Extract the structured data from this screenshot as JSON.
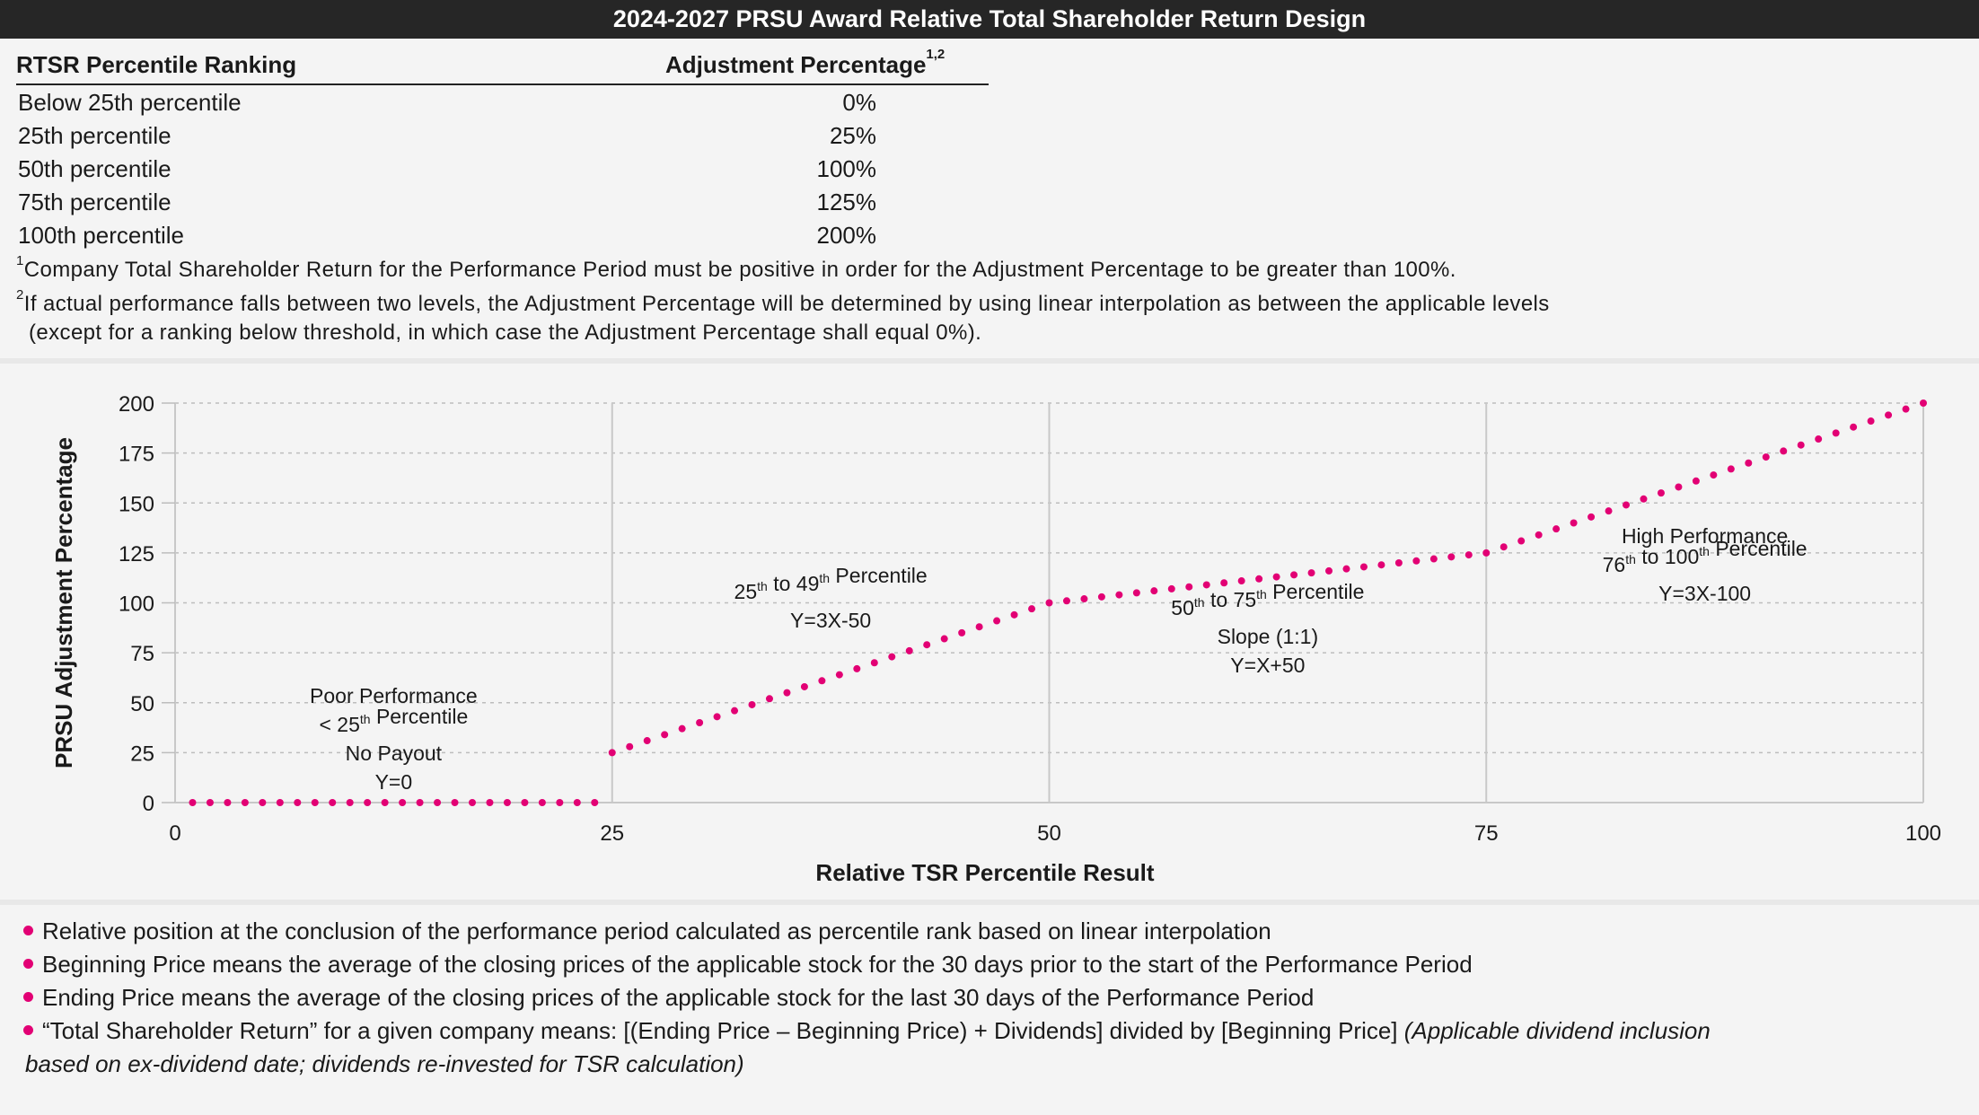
{
  "title": "2024-2027 PRSU Award Relative Total Shareholder Return Design",
  "table": {
    "header_ranking": "RTSR Percentile Ranking",
    "header_adjustment": "Adjustment Percentage",
    "header_adjustment_sup": "1,2",
    "rows": [
      {
        "ranking": "Below 25th percentile",
        "adjustment": "0%"
      },
      {
        "ranking": "25th percentile",
        "adjustment": "25%"
      },
      {
        "ranking": "50th percentile",
        "adjustment": "100%"
      },
      {
        "ranking": "75th percentile",
        "adjustment": "125%"
      },
      {
        "ranking": "100th percentile",
        "adjustment": "200%"
      }
    ]
  },
  "footnotes": {
    "fn1_mark": "1",
    "fn1": "Company Total Shareholder Return for the Performance Period must be positive in order for the Adjustment Percentage to be greater than 100%.",
    "fn2_mark": "2",
    "fn2_line1": "If actual performance falls between two levels, the Adjustment Percentage will be determined by using linear interpolation as between the applicable levels",
    "fn2_line2": "(except for a ranking below threshold, in which case the Adjustment Percentage shall equal 0%)."
  },
  "chart_data": {
    "type": "scatter",
    "xlabel": "Relative TSR Percentile Result",
    "ylabel": "PRSU Adjustment Percentage",
    "xlim": [
      0,
      100
    ],
    "ylim": [
      0,
      200
    ],
    "x_ticks": [
      0,
      25,
      50,
      75,
      100
    ],
    "y_ticks": [
      0,
      25,
      50,
      75,
      100,
      125,
      150,
      175,
      200
    ],
    "grid": "dotted horizontal lines, solid vertical lines at 25, 50, 75, 100",
    "marker_color": "#e20074",
    "series": [
      {
        "x": [
          1,
          2,
          3,
          4,
          5,
          6,
          7,
          8,
          9,
          10,
          11,
          12,
          13,
          14,
          15,
          16,
          17,
          18,
          19,
          20,
          21,
          22,
          23,
          24,
          25,
          26,
          27,
          28,
          29,
          30,
          31,
          32,
          33,
          34,
          35,
          36,
          37,
          38,
          39,
          40,
          41,
          42,
          43,
          44,
          45,
          46,
          47,
          48,
          49,
          50,
          51,
          52,
          53,
          54,
          55,
          56,
          57,
          58,
          59,
          60,
          61,
          62,
          63,
          64,
          65,
          66,
          67,
          68,
          69,
          70,
          71,
          72,
          73,
          74,
          75,
          76,
          77,
          78,
          79,
          80,
          81,
          82,
          83,
          84,
          85,
          86,
          87,
          88,
          89,
          90,
          91,
          92,
          93,
          94,
          95,
          96,
          97,
          98,
          99,
          100
        ],
        "y": [
          0,
          0,
          0,
          0,
          0,
          0,
          0,
          0,
          0,
          0,
          0,
          0,
          0,
          0,
          0,
          0,
          0,
          0,
          0,
          0,
          0,
          0,
          0,
          0,
          25,
          28,
          31,
          34,
          37,
          40,
          43,
          46,
          49,
          52,
          55,
          58,
          61,
          64,
          67,
          70,
          73,
          76,
          79,
          82,
          85,
          88,
          91,
          94,
          97,
          100,
          101,
          102,
          103,
          104,
          105,
          106,
          107,
          108,
          109,
          110,
          111,
          112,
          113,
          114,
          115,
          116,
          117,
          118,
          119,
          120,
          121,
          122,
          123,
          124,
          125,
          128,
          131,
          134,
          137,
          140,
          143,
          146,
          149,
          152,
          155,
          158,
          161,
          164,
          167,
          170,
          173,
          176,
          179,
          182,
          185,
          188,
          191,
          194,
          197,
          200
        ]
      }
    ],
    "annotations": [
      {
        "lines": [
          "Poor Performance",
          "< 25th Percentile",
          "No Payout",
          "Y=0"
        ],
        "x": 12.5,
        "y": 50
      },
      {
        "lines": [
          "25th to 49th Percentile",
          "Y=3X-50"
        ],
        "x": 37.5,
        "y": 102
      },
      {
        "lines": [
          "50th to 75th Percentile",
          "Slope (1:1)",
          "Y=X+50"
        ],
        "x": 62.5,
        "y": 94
      },
      {
        "lines": [
          "High Performance",
          "76th to 100th Percentile",
          "Y=3X-100"
        ],
        "x": 87.5,
        "y": 130
      }
    ]
  },
  "bullets": {
    "b1": "Relative position at the conclusion of the performance period calculated as percentile rank based on linear interpolation",
    "b2": "Beginning Price means the average of the closing prices of the applicable stock for the 30 days prior to the start of the Performance Period",
    "b3": "Ending Price means the average of the closing prices of the applicable stock for the last 30 days of the Performance Period",
    "b4_plain": "“Total Shareholder Return” for a given company means: [(Ending Price – Beginning Price) + Dividends] divided by [Beginning Price] ",
    "b4_italic": "(Applicable dividend inclusion",
    "b4_cont": "based on ex-dividend date; dividends re-invested for TSR calculation)"
  }
}
